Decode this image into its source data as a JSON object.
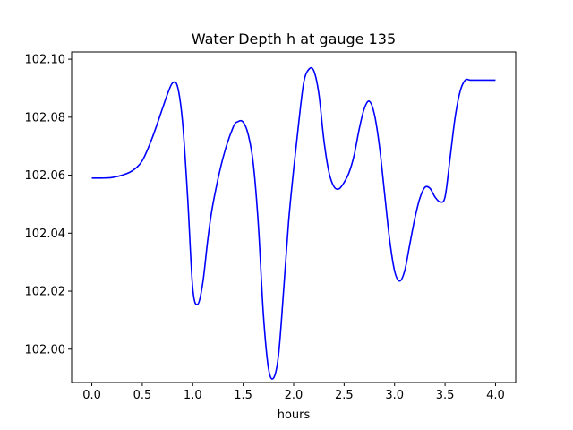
{
  "chart_data": {
    "type": "line",
    "title": "Water Depth h at gauge 135",
    "xlabel": "hours",
    "ylabel": "",
    "xlim": [
      -0.2,
      4.2
    ],
    "ylim": [
      101.9885,
      102.1025
    ],
    "xticks": [
      0.0,
      0.5,
      1.0,
      1.5,
      2.0,
      2.5,
      3.0,
      3.5,
      4.0
    ],
    "xtick_labels": [
      "0.0",
      "0.5",
      "1.0",
      "1.5",
      "2.0",
      "2.5",
      "3.0",
      "3.5",
      "4.0"
    ],
    "yticks": [
      102.0,
      102.02,
      102.04,
      102.06,
      102.08,
      102.1
    ],
    "ytick_labels": [
      "102.00",
      "102.02",
      "102.04",
      "102.06",
      "102.08",
      "102.10"
    ],
    "grid": false,
    "series": [
      {
        "color": "#0000ff",
        "x": [
          0.0,
          0.1,
          0.2,
          0.3,
          0.4,
          0.5,
          0.6,
          0.7,
          0.75,
          0.8,
          0.85,
          0.9,
          0.95,
          1.0,
          1.05,
          1.1,
          1.15,
          1.2,
          1.3,
          1.4,
          1.45,
          1.5,
          1.55,
          1.6,
          1.65,
          1.7,
          1.75,
          1.8,
          1.85,
          1.9,
          1.95,
          2.0,
          2.05,
          2.1,
          2.15,
          2.2,
          2.25,
          2.3,
          2.35,
          2.4,
          2.45,
          2.5,
          2.55,
          2.6,
          2.65,
          2.7,
          2.75,
          2.8,
          2.85,
          2.9,
          2.95,
          3.0,
          3.05,
          3.1,
          3.15,
          3.2,
          3.25,
          3.3,
          3.35,
          3.4,
          3.45,
          3.5,
          3.55,
          3.6,
          3.65,
          3.7,
          3.75,
          3.8,
          3.85,
          3.9,
          3.95,
          4.0
        ],
        "y": [
          102.059,
          102.059,
          102.0592,
          102.06,
          102.0615,
          102.065,
          102.073,
          102.083,
          102.088,
          102.0918,
          102.0905,
          102.078,
          102.052,
          102.021,
          102.0155,
          102.023,
          102.038,
          102.05,
          102.066,
          102.0765,
          102.0785,
          102.0783,
          102.074,
          102.064,
          102.043,
          102.012,
          101.9935,
          101.99,
          101.998,
          102.02,
          102.044,
          102.062,
          102.078,
          102.092,
          102.0965,
          102.096,
          102.088,
          102.072,
          102.061,
          102.056,
          102.0553,
          102.0575,
          102.061,
          102.067,
          102.076,
          102.083,
          102.0855,
          102.081,
          102.07,
          102.054,
          102.038,
          102.027,
          102.0235,
          102.027,
          102.036,
          102.045,
          102.052,
          102.0558,
          102.0555,
          102.0525,
          102.0508,
          102.0525,
          102.066,
          102.08,
          102.089,
          102.0928,
          102.0928,
          102.0928,
          102.0928,
          102.0928,
          102.0928,
          102.0928
        ]
      }
    ]
  }
}
